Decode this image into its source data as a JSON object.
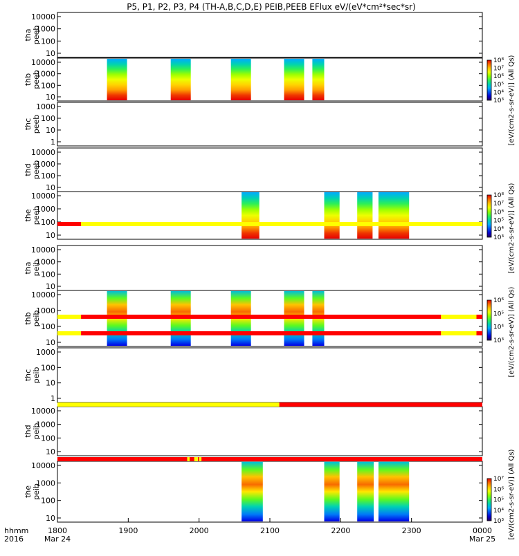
{
  "chart_data": {
    "type": "heatmap",
    "title": "P5, P1, P2, P3, P4 (TH-A,B,C,D,E) PEIB,PEEB EFlux eV/(eV*cm²*sec*sr)",
    "x_time_labels": [
      "1800",
      "1900",
      "2000",
      "2100",
      "2200",
      "2300",
      "0000"
    ],
    "x_date_labels": [
      "Mar 24",
      "Mar 25"
    ],
    "x_axis_prefix": [
      "hhmm",
      "2016"
    ],
    "xlim_hhmm": [
      "1800",
      "0000"
    ],
    "panels": [
      {
        "probe": "tha",
        "product": "peeb",
        "yticks": [
          "10",
          "100",
          "1000",
          "10000"
        ],
        "has_data": false,
        "intervals": []
      },
      {
        "probe": "thb",
        "product": "peeb",
        "yticks": [
          "10",
          "100",
          "1000",
          "10000"
        ],
        "has_data": true,
        "intervals": [
          [
            "1842",
            "1859"
          ],
          [
            "1936",
            "1953"
          ],
          [
            "2027",
            "2044"
          ],
          [
            "2112",
            "2129"
          ],
          [
            "2136",
            "2146"
          ]
        ]
      },
      {
        "probe": "thc",
        "product": "peeb",
        "yticks": [
          "1",
          "10",
          "100",
          "1000"
        ],
        "has_data": false,
        "intervals": []
      },
      {
        "probe": "thd",
        "product": "peeb",
        "yticks": [
          "10",
          "100",
          "1000",
          "10000"
        ],
        "has_data": false,
        "intervals": []
      },
      {
        "probe": "the",
        "product": "peeb",
        "yticks": [
          "10",
          "100",
          "1000",
          "10000"
        ],
        "has_data": true,
        "intervals": [
          [
            "2036",
            "2051"
          ],
          [
            "2146",
            "2159"
          ],
          [
            "2214",
            "2227"
          ],
          [
            "2232",
            "2258"
          ]
        ]
      },
      {
        "probe": "tha",
        "product": "peib",
        "yticks": [
          "10",
          "100",
          "1000",
          "10000"
        ],
        "has_data": false,
        "intervals": []
      },
      {
        "probe": "thb",
        "product": "peib",
        "yticks": [
          "10",
          "100",
          "1000",
          "10000"
        ],
        "has_data": true,
        "intervals": [
          [
            "1842",
            "1859"
          ],
          [
            "1936",
            "1953"
          ],
          [
            "2027",
            "2044"
          ],
          [
            "2112",
            "2129"
          ],
          [
            "2136",
            "2146"
          ]
        ]
      },
      {
        "probe": "thc",
        "product": "peib",
        "yticks": [
          "1",
          "10",
          "100",
          "1000"
        ],
        "has_data": false,
        "intervals": []
      },
      {
        "probe": "thd",
        "product": "peib",
        "yticks": [
          "10",
          "100",
          "1000",
          "10000"
        ],
        "has_data": false,
        "intervals": []
      },
      {
        "probe": "the",
        "product": "peib",
        "yticks": [
          "10",
          "100",
          "1000",
          "10000"
        ],
        "has_data": true,
        "intervals": [
          [
            "2036",
            "2054"
          ],
          [
            "2146",
            "2159"
          ],
          [
            "2214",
            "2228"
          ],
          [
            "2232",
            "2258"
          ]
        ]
      }
    ],
    "mode_bars": [
      {
        "segments": [
          [
            "1800",
            "1820",
            "#ff0000"
          ],
          [
            "1820",
            "0000",
            "#ffff00"
          ]
        ]
      },
      {
        "segments": [
          [
            "1800",
            "1820",
            "#ffff00"
          ],
          [
            "1820",
            "2325",
            "#ff0000"
          ],
          [
            "2325",
            "2355",
            "#ffff00"
          ],
          [
            "2355",
            "0000",
            "#ff0000"
          ]
        ]
      },
      {
        "segments": [
          [
            "1800",
            "1820",
            "#ffff00"
          ],
          [
            "1820",
            "2325",
            "#ff0000"
          ],
          [
            "2325",
            "2355",
            "#ffff00"
          ],
          [
            "2355",
            "0000",
            "#ff0000"
          ]
        ]
      },
      {
        "segments": [
          [
            "1800",
            "2108",
            "#ffff00"
          ],
          [
            "2108",
            "0000",
            "#ff0000"
          ]
        ]
      },
      {
        "segments": [
          [
            "1800",
            "1950",
            "#ff0000"
          ],
          [
            "1950",
            "1952",
            "#ffff00"
          ],
          [
            "1952",
            "1956",
            "#ff0000"
          ],
          [
            "1956",
            "1959",
            "#ffff00"
          ],
          [
            "1959",
            "2000",
            "#ff0000"
          ],
          [
            "2000",
            "2002",
            "#ffff00"
          ],
          [
            "2002",
            "0000",
            "#ff0000"
          ]
        ]
      }
    ],
    "colorbars": [
      {
        "for_panel": 1,
        "ticks": [
          "10³",
          "10⁴",
          "10⁵",
          "10⁶",
          "10⁷",
          "10⁸"
        ]
      },
      {
        "for_panel": 4,
        "ticks": [
          "10³",
          "10⁴",
          "10⁵",
          "10⁶",
          "10⁷",
          "10⁸"
        ]
      },
      {
        "for_panel": 6,
        "ticks": [
          "10³",
          "10⁴",
          "10⁵",
          "10⁶"
        ]
      },
      {
        "for_panel": 9,
        "ticks": [
          "10³",
          "10⁴",
          "10⁵",
          "10⁶",
          "10⁷"
        ]
      }
    ],
    "colorbar_labels": [
      "[eV/(cm2-s-sr-eV)] (All Qs)",
      "[eV/(cm2-s-sr-eV)] (All Qs)",
      "[eV/(cm2-s-sr-eV)] (All Qs)",
      "[eV/(cm2-s-sr-eV)] (All Qs)"
    ]
  }
}
